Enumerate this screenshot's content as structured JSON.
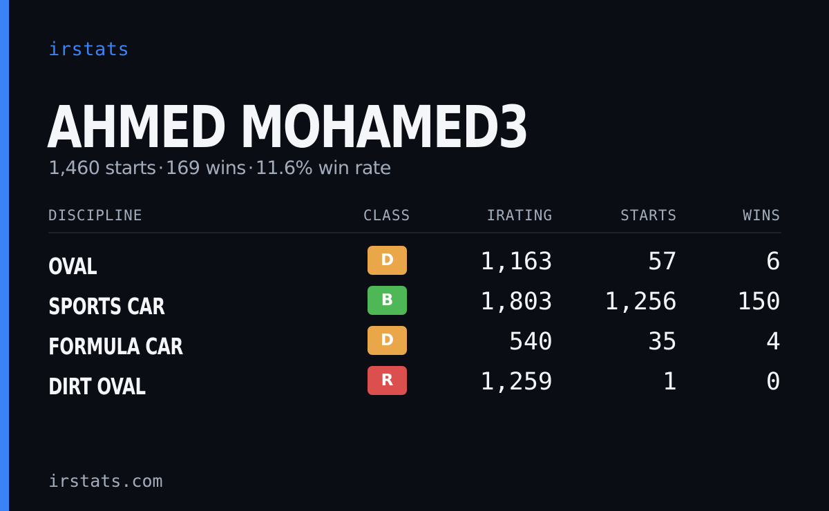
{
  "brand": "irstats",
  "player": {
    "name": "AHMED MOHAMED3",
    "starts": "1,460 starts",
    "wins": "169 wins",
    "win_rate": "11.6% win rate",
    "separator": "·"
  },
  "table": {
    "headers": {
      "discipline": "DISCIPLINE",
      "class": "CLASS",
      "irating": "IRATING",
      "starts": "STARTS",
      "wins": "WINS"
    },
    "rows": [
      {
        "discipline": "OVAL",
        "class": "D",
        "class_color": "#eaa74a",
        "irating": "1,163",
        "starts": "57",
        "wins": "6"
      },
      {
        "discipline": "SPORTS CAR",
        "class": "B",
        "class_color": "#4eb857",
        "irating": "1,803",
        "starts": "1,256",
        "wins": "150"
      },
      {
        "discipline": "FORMULA CAR",
        "class": "D",
        "class_color": "#eaa74a",
        "irating": "540",
        "starts": "35",
        "wins": "4"
      },
      {
        "discipline": "DIRT OVAL",
        "class": "R",
        "class_color": "#dc4f4f",
        "irating": "1,259",
        "starts": "1",
        "wins": "0"
      }
    ]
  },
  "footer": "irstats.com",
  "colors": {
    "background": "#0a0d14",
    "accent": "#3b82f6",
    "muted_text": "#a3acbb"
  }
}
